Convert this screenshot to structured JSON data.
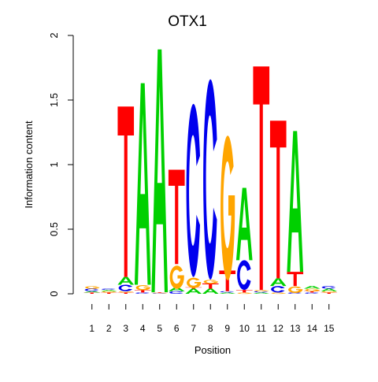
{
  "chart_data": {
    "type": "sequence-logo",
    "title": "OTX1",
    "xlabel": "Position",
    "ylabel": "Information content",
    "ylim": [
      0,
      2
    ],
    "yticks": [
      0,
      0.5,
      1,
      1.5,
      2
    ],
    "ytick_labels": [
      "0",
      "0.5",
      "1",
      "1.5",
      "2"
    ],
    "positions": [
      1,
      2,
      3,
      4,
      5,
      6,
      7,
      8,
      9,
      10,
      11,
      12,
      13,
      14,
      15
    ],
    "colors": {
      "A": "#00d000",
      "C": "#0000ee",
      "G": "#ffa500",
      "T": "#ff0000"
    },
    "columns": [
      {
        "position": 1,
        "letters": [
          [
            "T",
            0.01
          ],
          [
            "A",
            0.01
          ],
          [
            "C",
            0.02
          ],
          [
            "G",
            0.02
          ]
        ]
      },
      {
        "position": 2,
        "letters": [
          [
            "T",
            0.01
          ],
          [
            "G",
            0.01
          ],
          [
            "A",
            0.01
          ],
          [
            "C",
            0.01
          ]
        ]
      },
      {
        "position": 3,
        "letters": [
          [
            "T",
            0.01
          ],
          [
            "G",
            0.01
          ],
          [
            "C",
            0.05
          ],
          [
            "A",
            0.06
          ],
          [
            "T",
            1.32
          ]
        ]
      },
      {
        "position": 4,
        "letters": [
          [
            "C",
            0.01
          ],
          [
            "T",
            0.02
          ],
          [
            "G",
            0.04
          ],
          [
            "A",
            1.56
          ]
        ]
      },
      {
        "position": 5,
        "letters": [
          [
            "C",
            0.004
          ],
          [
            "G",
            0.004
          ],
          [
            "T",
            0.004
          ],
          [
            "A",
            1.88
          ]
        ]
      },
      {
        "position": 6,
        "letters": [
          [
            "C",
            0.02
          ],
          [
            "A",
            0.03
          ],
          [
            "G",
            0.18
          ],
          [
            "T",
            0.73
          ]
        ]
      },
      {
        "position": 7,
        "letters": [
          [
            "A",
            0.04
          ],
          [
            "T",
            0.01
          ],
          [
            "G",
            0.08
          ],
          [
            "C",
            1.34
          ]
        ]
      },
      {
        "position": 8,
        "letters": [
          [
            "A",
            0.04
          ],
          [
            "T",
            0.04
          ],
          [
            "G",
            0.03
          ],
          [
            "C",
            1.55
          ]
        ]
      },
      {
        "position": 9,
        "letters": [
          [
            "A",
            0.01
          ],
          [
            "C",
            0.01
          ],
          [
            "T",
            0.16
          ],
          [
            "G",
            1.12
          ]
        ]
      },
      {
        "position": 10,
        "letters": [
          [
            "G",
            0.01
          ],
          [
            "T",
            0.02
          ],
          [
            "C",
            0.23
          ],
          [
            "A",
            0.56
          ]
        ]
      },
      {
        "position": 11,
        "letters": [
          [
            "A",
            0.01
          ],
          [
            "C",
            0.01
          ],
          [
            "G",
            0.01
          ],
          [
            "T",
            1.73
          ]
        ]
      },
      {
        "position": 12,
        "letters": [
          [
            "G",
            0.01
          ],
          [
            "C",
            0.05
          ],
          [
            "A",
            0.06
          ],
          [
            "T",
            1.22
          ]
        ]
      },
      {
        "position": 13,
        "letters": [
          [
            "C",
            0.01
          ],
          [
            "G",
            0.05
          ],
          [
            "T",
            0.11
          ],
          [
            "A",
            1.09
          ]
        ]
      },
      {
        "position": 14,
        "letters": [
          [
            "C",
            0.01
          ],
          [
            "T",
            0.01
          ],
          [
            "G",
            0.02
          ],
          [
            "A",
            0.02
          ]
        ]
      },
      {
        "position": 15,
        "letters": [
          [
            "T",
            0.01
          ],
          [
            "G",
            0.01
          ],
          [
            "A",
            0.02
          ],
          [
            "C",
            0.02
          ]
        ]
      }
    ]
  }
}
